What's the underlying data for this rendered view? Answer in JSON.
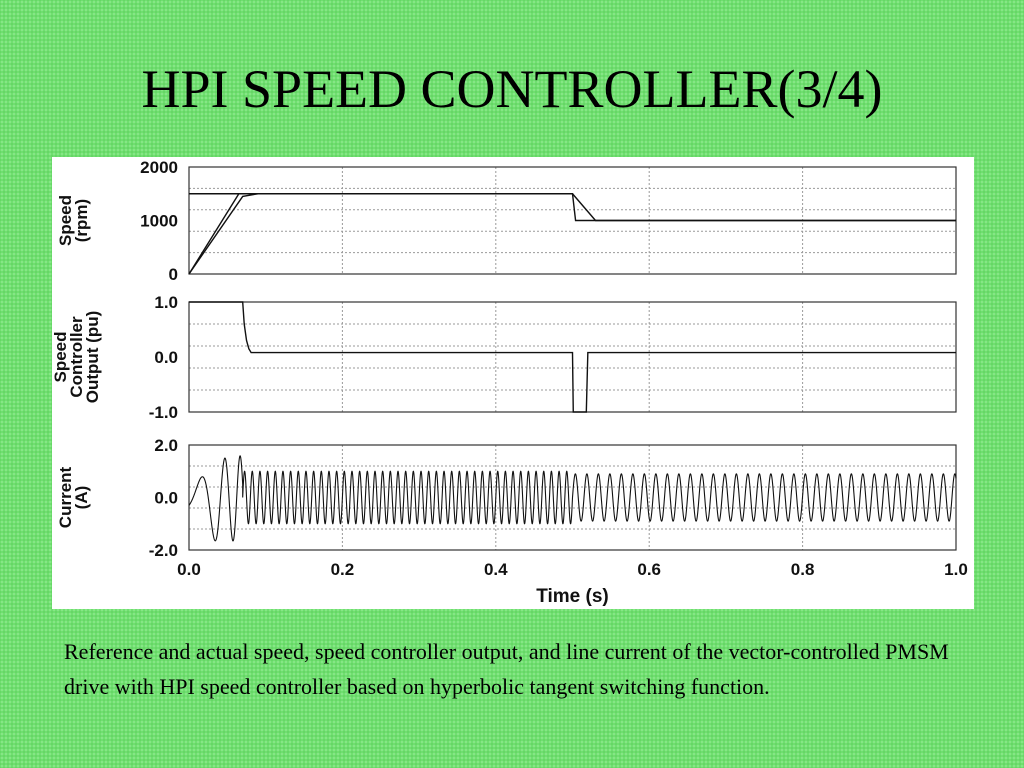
{
  "slide": {
    "title": "HPI SPEED CONTROLLER(3/4)",
    "caption": "Reference and actual speed, speed controller output, and line current of the vector-controlled PMSM drive with HPI speed controller based on hyperbolic tangent switching function.",
    "background_color": "#6fe06f"
  },
  "chart_data": [
    {
      "type": "line",
      "ylabel": [
        "Speed",
        "(rpm)"
      ],
      "ylim": [
        0,
        2000
      ],
      "yticks": [
        "2000",
        "1000",
        "0"
      ],
      "xlim": [
        0.0,
        1.0
      ],
      "grid": true,
      "series": [
        {
          "x": [
            0.0,
            0.065,
            0.08,
            0.12
          ],
          "y": [
            0,
            1500,
            1500,
            1500
          ]
        },
        {
          "x": [
            0.0,
            0.5,
            0.504,
            1.0
          ],
          "y": [
            1500,
            1500,
            1000,
            1000
          ]
        },
        {
          "x": [
            0.0,
            0.07,
            0.09,
            0.5,
            0.53,
            0.54,
            1.0
          ],
          "y": [
            0,
            1450,
            1500,
            1500,
            1000,
            1000,
            1000
          ]
        }
      ]
    },
    {
      "type": "line",
      "ylabel": [
        "Speed",
        "Controller",
        "Output (pu)"
      ],
      "ylim": [
        -1.0,
        1.0
      ],
      "yticks": [
        "1.0",
        "0.0",
        "-1.0"
      ],
      "xlim": [
        0.0,
        1.0
      ],
      "grid": true,
      "series": [
        {
          "x": [
            0.0,
            0.07,
            0.072,
            0.075,
            0.078,
            0.081,
            0.09,
            0.5,
            0.501,
            0.515,
            0.518,
            0.52,
            0.525,
            1.0
          ],
          "y": [
            1.0,
            1.0,
            0.6,
            0.3,
            0.15,
            0.08,
            0.08,
            0.08,
            -1.0,
            -1.0,
            -1.0,
            0.08,
            0.08,
            0.08
          ]
        }
      ]
    },
    {
      "type": "line",
      "ylabel": [
        "Current",
        "(A)"
      ],
      "ylim": [
        -2.0,
        2.0
      ],
      "yticks": [
        "2.0",
        "0.0",
        "-2.0"
      ],
      "xlim": [
        0.0,
        1.0
      ],
      "xticks": [
        "0.0",
        "0.2",
        "0.4",
        "0.6",
        "0.8",
        "1.0"
      ],
      "xlabel": "Time (s)",
      "grid": true,
      "series": [
        {
          "segments": [
            {
              "x0": 0.0,
              "x1": 0.07,
              "freq_start": 10,
              "freq_end": 60,
              "amp": 1.6,
              "offset_start": -0.3
            },
            {
              "x0": 0.07,
              "x1": 0.5,
              "freq": 100,
              "amp": 1.0
            },
            {
              "x0": 0.5,
              "x1": 1.0,
              "freq": 66.7,
              "amp": 0.9
            }
          ]
        }
      ]
    }
  ]
}
